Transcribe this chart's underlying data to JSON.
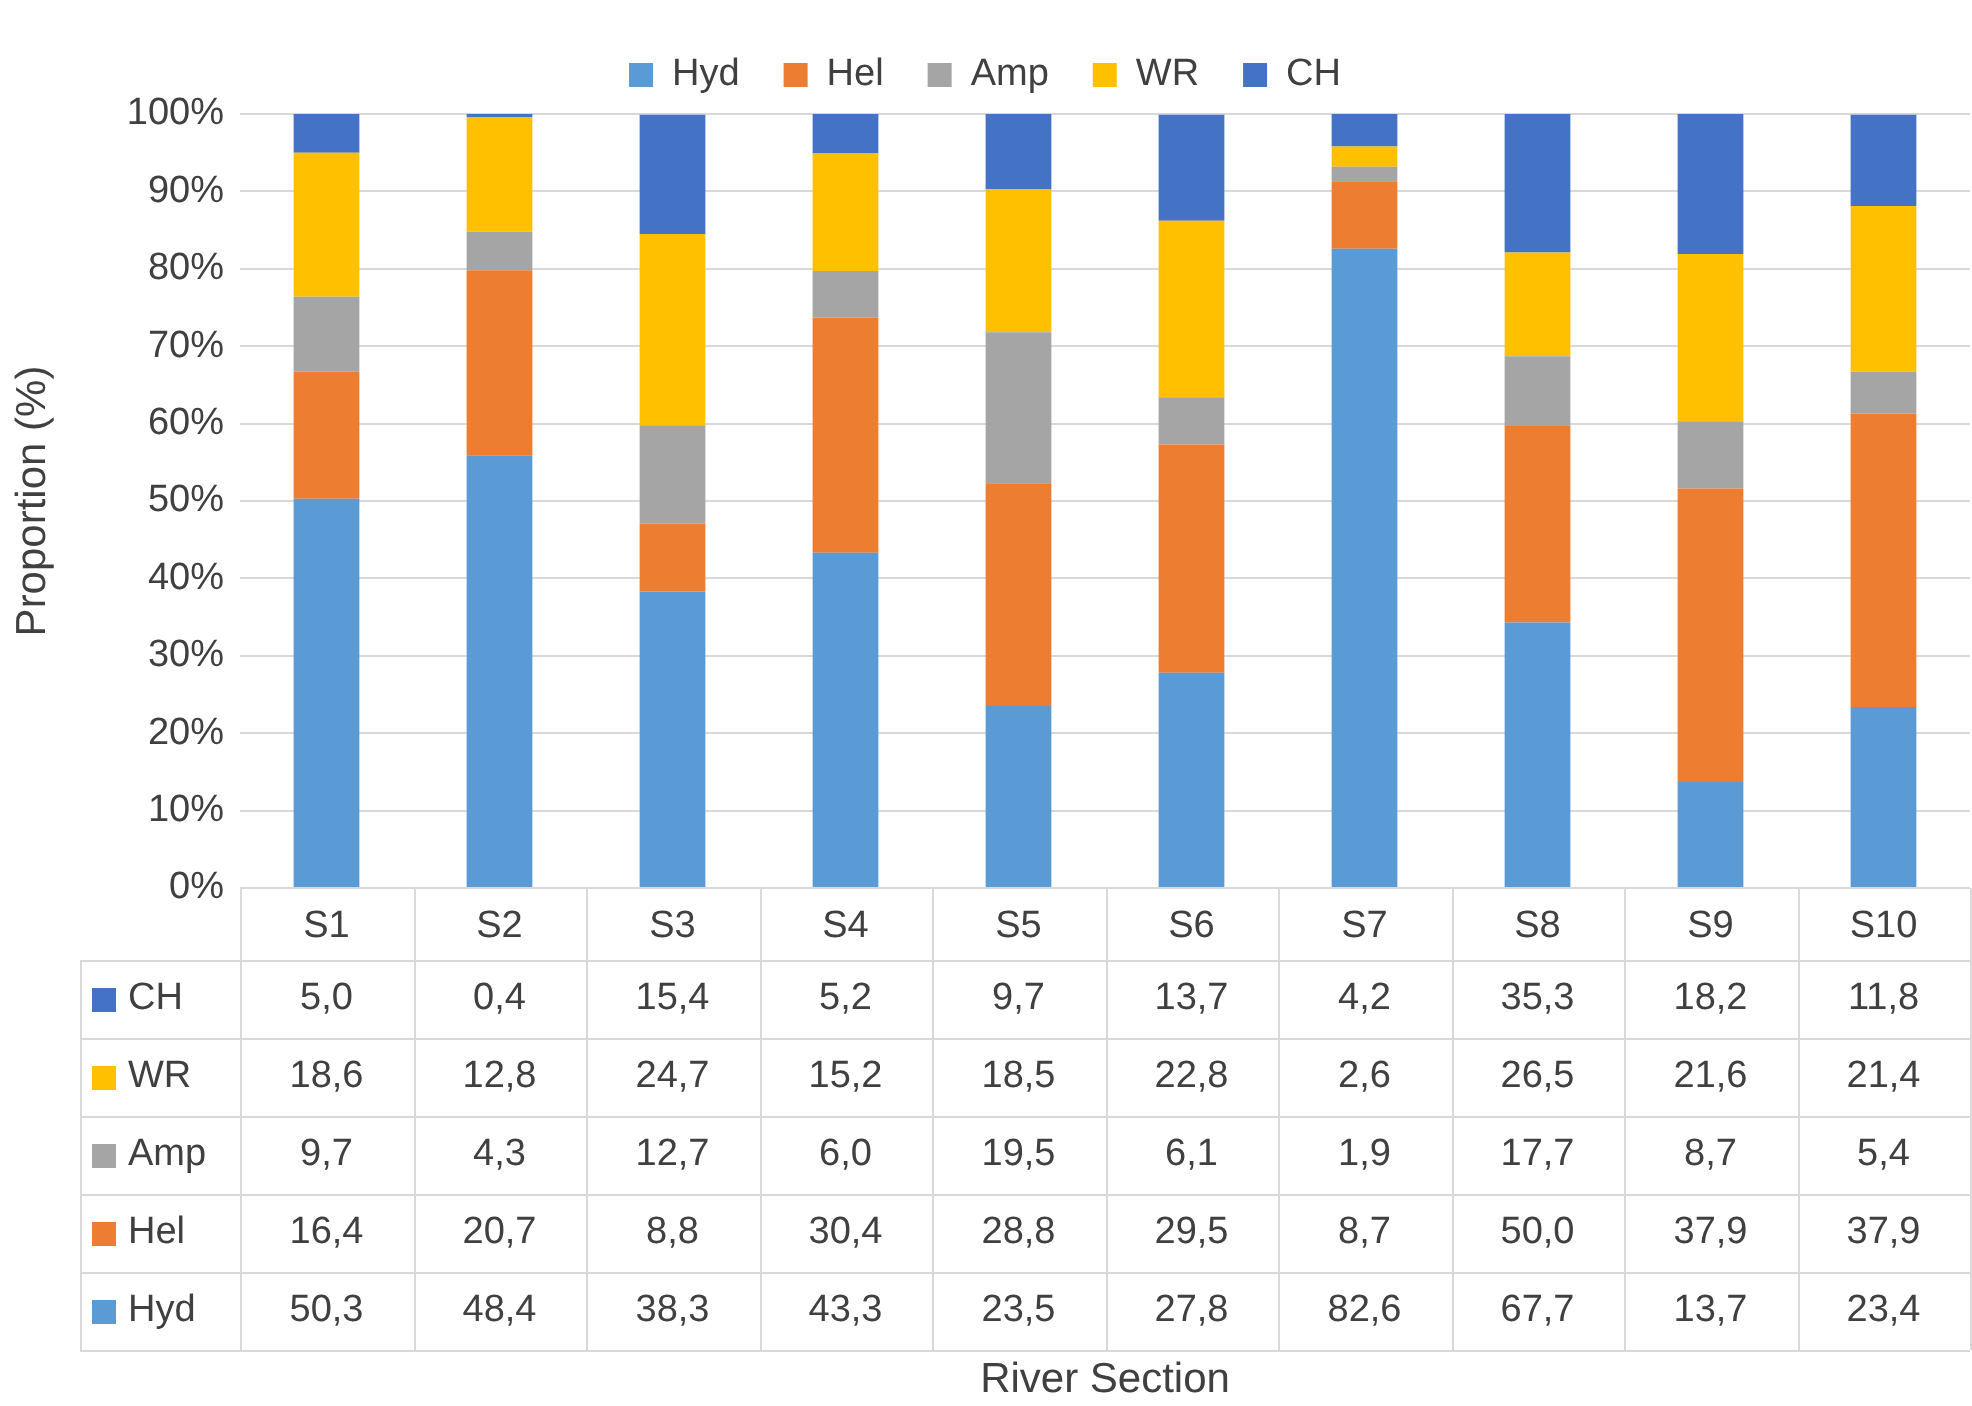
{
  "chart_data": [
    {
      "type": "bar",
      "stacked": true,
      "ylabel": "Proportion (%)",
      "categories": [
        "S1",
        "S2",
        "S3",
        "S4",
        "S5",
        "S6",
        "S7",
        "S8",
        "S9",
        "S10"
      ],
      "ylim": [
        0,
        100
      ],
      "yticks": [
        {
          "value": 0,
          "label": "0%"
        },
        {
          "value": 10,
          "label": "10%"
        },
        {
          "value": 20,
          "label": "20%"
        },
        {
          "value": 30,
          "label": "30%"
        },
        {
          "value": 40,
          "label": "40%"
        },
        {
          "value": 50,
          "label": "50%"
        },
        {
          "value": 60,
          "label": "60%"
        },
        {
          "value": 70,
          "label": "70%"
        },
        {
          "value": 80,
          "label": "80%"
        },
        {
          "value": 90,
          "label": "90%"
        },
        {
          "value": 100,
          "label": "100%"
        }
      ],
      "grid": "y",
      "legend": "top",
      "series": [
        {
          "name": "Hyd",
          "color": "#5b9bd5",
          "values": [
            50.3,
            55.9,
            38.3,
            43.3,
            23.5,
            27.8,
            82.6,
            34.3,
            13.7,
            23.4
          ]
        },
        {
          "name": "Hel",
          "color": "#ed7d31",
          "values": [
            16.4,
            23.9,
            8.8,
            30.4,
            28.8,
            29.5,
            8.7,
            25.4,
            37.9,
            37.9
          ]
        },
        {
          "name": "Amp",
          "color": "#a5a5a5",
          "values": [
            9.7,
            5.0,
            12.7,
            6.0,
            19.5,
            6.1,
            1.9,
            9.0,
            8.7,
            5.4
          ]
        },
        {
          "name": "WR",
          "color": "#ffc000",
          "values": [
            18.6,
            14.8,
            24.7,
            15.2,
            18.5,
            22.8,
            2.6,
            13.4,
            21.6,
            21.4
          ]
        },
        {
          "name": "CH",
          "color": "#4472c4",
          "values": [
            5.0,
            0.4,
            15.4,
            5.1,
            9.7,
            13.7,
            4.2,
            17.9,
            18.1,
            11.8
          ]
        }
      ]
    },
    {
      "type": "other",
      "annotations": [
        "CH",
        "5,0",
        "0,4",
        "15,4",
        "5,2",
        "9,7",
        "13,7",
        "4,2",
        "35,3",
        "18,2",
        "11,8",
        "WR",
        "18,6",
        "12,8",
        "24,7",
        "15,2",
        "18,5",
        "22,8",
        "2,6",
        "26,5",
        "21,6",
        "21,4",
        "Amp",
        "9,7",
        "4,3",
        "12,7",
        "6,0",
        "19,5",
        "6,1",
        "1,9",
        "17,7",
        "8,7",
        "5,4",
        "Hel",
        "16,4",
        "20,7",
        "8,8",
        "30,4",
        "28,8",
        "29,5",
        "8,7",
        "50,0",
        "37,9",
        "37,9",
        "Hyd",
        "50,3",
        "48,4",
        "38,3",
        "43,3",
        "23,5",
        "27,8",
        "82,6",
        "67,7",
        "13,7",
        "23,4",
        "River Section"
      ]
    }
  ]
}
